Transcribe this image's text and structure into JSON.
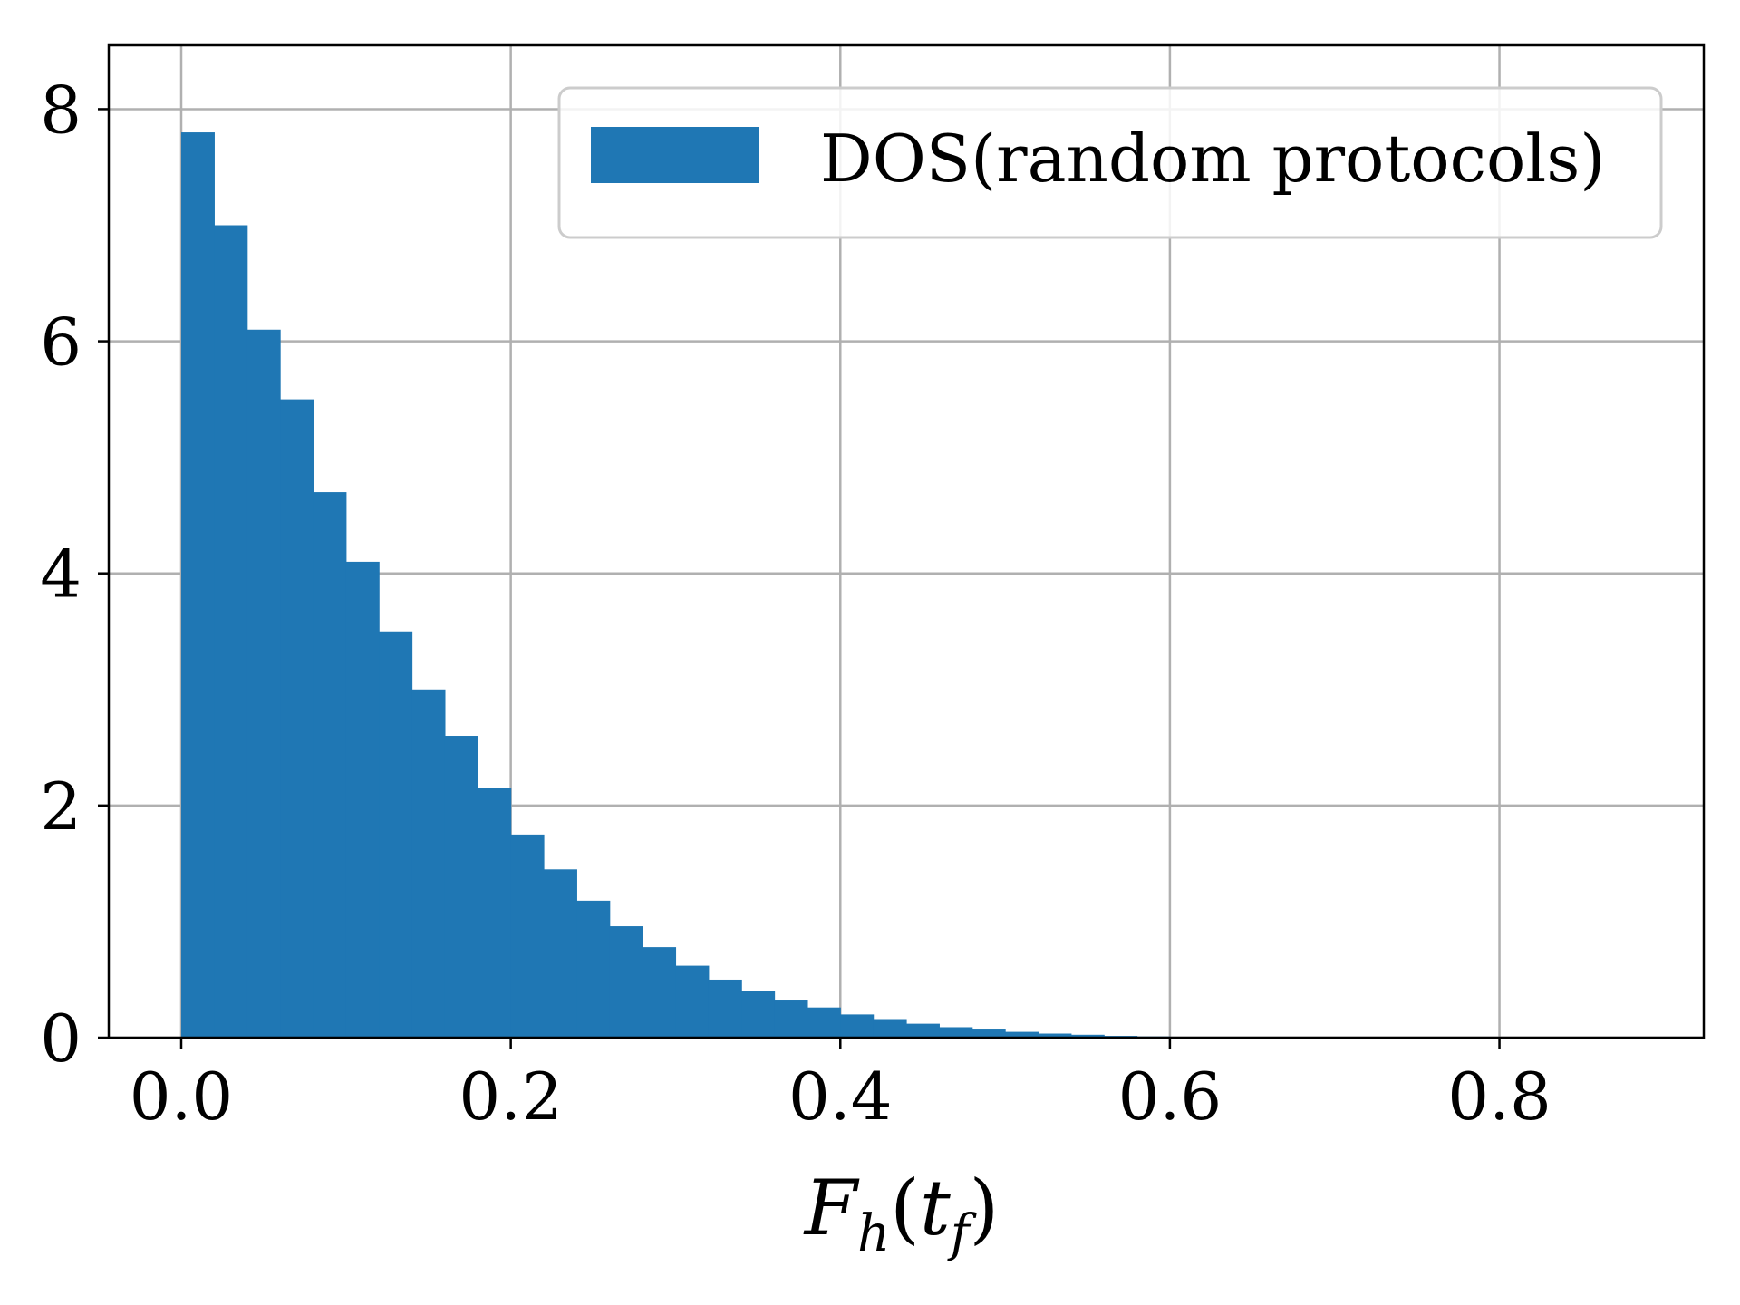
{
  "chart_data": {
    "type": "bar",
    "subtype": "histogram",
    "title": "",
    "xlabel": "F_h(t_f)",
    "xlabel_parts": {
      "base": "F",
      "sub1": "h",
      "paren_open": "(",
      "var": "t",
      "sub2": "f",
      "paren_close": ")"
    },
    "ylabel": "",
    "xlim": [
      -0.044,
      0.924
    ],
    "ylim": [
      0,
      8.55
    ],
    "xticks": [
      0.0,
      0.2,
      0.4,
      0.6,
      0.8
    ],
    "xtick_labels": [
      "0.0",
      "0.2",
      "0.4",
      "0.6",
      "0.8"
    ],
    "yticks": [
      0,
      2,
      4,
      6,
      8
    ],
    "ytick_labels": [
      "0",
      "2",
      "4",
      "6",
      "8"
    ],
    "grid": true,
    "legend": {
      "position": "top-right",
      "entries": [
        "DOS(random protocols)"
      ]
    },
    "series": [
      {
        "name": "DOS(random protocols)",
        "color": "#1f77b4",
        "bin_width": 0.02,
        "bin_starts": [
          0.0,
          0.02,
          0.04,
          0.06,
          0.08,
          0.1,
          0.12,
          0.14,
          0.16,
          0.18,
          0.2,
          0.22,
          0.24,
          0.26,
          0.28,
          0.3,
          0.32,
          0.34,
          0.36,
          0.38,
          0.4,
          0.42,
          0.44,
          0.46,
          0.48,
          0.5,
          0.52,
          0.54,
          0.56,
          0.58,
          0.6,
          0.62
        ],
        "values": [
          7.8,
          7.0,
          6.1,
          5.5,
          4.7,
          4.1,
          3.5,
          3.0,
          2.6,
          2.15,
          1.75,
          1.45,
          1.18,
          0.96,
          0.78,
          0.62,
          0.5,
          0.4,
          0.32,
          0.26,
          0.2,
          0.16,
          0.12,
          0.09,
          0.07,
          0.05,
          0.035,
          0.025,
          0.015,
          0.01,
          0.006,
          0.003
        ]
      }
    ]
  },
  "colors": {
    "bar": "#1f77b4",
    "grid": "#b0b0b0",
    "axis": "#000000",
    "legend_border": "#cccccc"
  }
}
